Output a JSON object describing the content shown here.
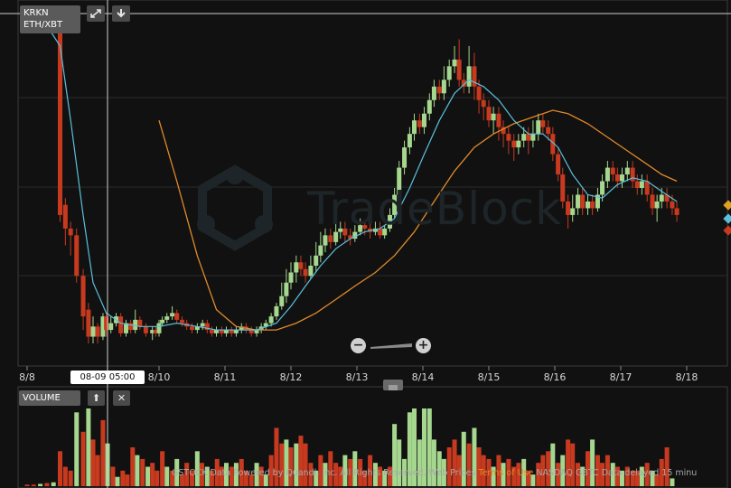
{
  "header": {
    "exchange": "KRKN",
    "pair": "ETH/XBT"
  },
  "volume_panel": {
    "label": "VOLUME",
    "close_symbol": "✕",
    "up_symbol": "⬆"
  },
  "crosshair_label": "08-09 05:00",
  "watermark": "TradeBlock",
  "footer": {
    "text_before": "GSTOCK Data Powered by Quandl, Inc. All Rights Reserved. Web Prices ",
    "terms": "Terms of Use",
    "text_after": " NASDAQ GBTC Data delayed 15 minu"
  },
  "colors": {
    "up": "#a6d78f",
    "down": "#c83a1f",
    "ma_fast": "#5bc0de",
    "ma_slow": "#e08a2a",
    "background": "#111111",
    "grid": "#2a2a2a"
  },
  "icons": {
    "expand": "expand-icon",
    "download": "download-icon",
    "zoom_out": "zoom-out-icon",
    "zoom_in": "zoom-in-icon"
  },
  "chart_data": {
    "type": "candlestick",
    "x_tick_labels": [
      "8/8",
      "8/10",
      "8/11",
      "8/12",
      "8/13",
      "8/14",
      "8/15",
      "8/16",
      "8/17",
      "8/18"
    ],
    "x_ticks": [
      8.0,
      10.0,
      11.0,
      12.0,
      13.0,
      14.0,
      15.0,
      16.0,
      17.0,
      18.0
    ],
    "xlim": [
      8.0,
      18.6
    ],
    "ylim": [
      0,
      100
    ],
    "candles": [
      [
        8.0,
        98,
        98,
        99,
        97
      ],
      [
        8.1,
        98,
        97,
        98,
        96
      ],
      [
        8.2,
        98,
        97,
        99,
        96
      ],
      [
        8.3,
        98,
        97,
        99,
        96
      ],
      [
        8.5,
        98,
        42,
        98,
        40
      ],
      [
        8.58,
        45,
        38,
        47,
        33
      ],
      [
        8.66,
        38,
        36,
        40,
        30
      ],
      [
        8.75,
        36,
        24,
        38,
        22
      ],
      [
        8.85,
        24,
        12,
        26,
        8
      ],
      [
        8.93,
        14,
        6,
        16,
        4
      ],
      [
        9.0,
        6,
        9,
        12,
        4
      ],
      [
        9.07,
        9,
        6,
        10,
        4
      ],
      [
        9.15,
        6,
        12,
        13,
        5
      ],
      [
        9.2,
        12,
        8,
        13,
        6
      ],
      [
        9.27,
        8,
        10,
        12,
        7
      ],
      [
        9.35,
        10,
        12,
        13,
        9
      ],
      [
        9.42,
        12,
        7,
        13,
        6
      ],
      [
        9.5,
        7,
        10,
        11,
        6
      ],
      [
        9.57,
        10,
        8,
        11,
        7
      ],
      [
        9.64,
        8,
        11,
        14,
        7
      ],
      [
        9.71,
        11,
        9,
        12,
        8
      ],
      [
        9.8,
        9,
        7,
        10,
        6
      ],
      [
        9.9,
        7,
        8,
        9,
        5
      ],
      [
        9.95,
        8,
        7,
        9,
        6
      ],
      [
        10.0,
        7,
        10,
        11,
        6
      ],
      [
        10.05,
        10,
        11,
        12,
        9
      ],
      [
        10.12,
        11,
        12,
        13,
        10
      ],
      [
        10.2,
        12,
        13,
        15,
        11
      ],
      [
        10.27,
        13,
        11,
        14,
        10
      ],
      [
        10.35,
        11,
        10,
        12,
        9
      ],
      [
        10.42,
        10,
        9,
        11,
        8
      ],
      [
        10.5,
        9,
        8,
        10,
        7
      ],
      [
        10.58,
        8,
        9,
        10,
        7
      ],
      [
        10.66,
        9,
        10,
        11,
        8
      ],
      [
        10.73,
        10,
        8,
        11,
        7
      ],
      [
        10.8,
        8,
        7,
        9,
        6
      ],
      [
        10.87,
        7,
        8,
        9,
        6
      ],
      [
        10.95,
        8,
        7,
        9,
        6
      ],
      [
        11.02,
        7,
        8,
        9,
        6
      ],
      [
        11.1,
        8,
        7,
        9,
        6
      ],
      [
        11.17,
        7,
        8,
        9,
        6
      ],
      [
        11.25,
        8,
        9,
        10,
        7
      ],
      [
        11.32,
        9,
        8,
        10,
        7
      ],
      [
        11.4,
        8,
        7,
        9,
        6
      ],
      [
        11.48,
        7,
        8,
        9,
        6
      ],
      [
        11.55,
        8,
        9,
        10,
        7
      ],
      [
        11.62,
        9,
        10,
        11,
        8
      ],
      [
        11.7,
        10,
        12,
        13,
        9
      ],
      [
        11.78,
        12,
        15,
        16,
        11
      ],
      [
        11.86,
        15,
        18,
        22,
        14
      ],
      [
        11.93,
        18,
        22,
        26,
        16
      ],
      [
        12.0,
        22,
        25,
        28,
        20
      ],
      [
        12.08,
        25,
        28,
        30,
        22
      ],
      [
        12.15,
        28,
        26,
        30,
        24
      ],
      [
        12.22,
        26,
        24,
        28,
        22
      ],
      [
        12.3,
        24,
        27,
        30,
        23
      ],
      [
        12.38,
        27,
        30,
        34,
        25
      ],
      [
        12.45,
        30,
        33,
        37,
        28
      ],
      [
        12.52,
        33,
        36,
        38,
        31
      ],
      [
        12.6,
        36,
        34,
        38,
        32
      ],
      [
        12.68,
        34,
        37,
        40,
        33
      ],
      [
        12.75,
        37,
        38,
        40,
        35
      ],
      [
        12.82,
        38,
        36,
        40,
        34
      ],
      [
        12.9,
        36,
        35,
        38,
        33
      ],
      [
        12.97,
        35,
        37,
        39,
        34
      ],
      [
        13.05,
        37,
        39,
        41,
        36
      ],
      [
        13.12,
        39,
        38,
        40,
        36
      ],
      [
        13.2,
        38,
        37,
        40,
        35
      ],
      [
        13.28,
        37,
        38,
        40,
        36
      ],
      [
        13.35,
        38,
        36,
        40,
        35
      ],
      [
        13.42,
        36,
        38,
        39,
        35
      ],
      [
        13.5,
        38,
        42,
        44,
        37
      ],
      [
        13.57,
        42,
        48,
        50,
        41
      ],
      [
        13.64,
        48,
        56,
        58,
        46
      ],
      [
        13.72,
        56,
        62,
        64,
        54
      ],
      [
        13.8,
        62,
        66,
        68,
        60
      ],
      [
        13.87,
        66,
        70,
        72,
        64
      ],
      [
        13.95,
        70,
        68,
        72,
        66
      ],
      [
        14.02,
        68,
        72,
        74,
        66
      ],
      [
        14.1,
        72,
        76,
        78,
        70
      ],
      [
        14.17,
        76,
        80,
        82,
        74
      ],
      [
        14.25,
        80,
        78,
        82,
        76
      ],
      [
        14.32,
        78,
        82,
        86,
        76
      ],
      [
        14.4,
        82,
        86,
        88,
        80
      ],
      [
        14.48,
        86,
        88,
        92,
        84
      ],
      [
        14.55,
        88,
        82,
        94,
        80
      ],
      [
        14.62,
        82,
        80,
        84,
        78
      ],
      [
        14.7,
        80,
        86,
        92,
        78
      ],
      [
        14.78,
        86,
        80,
        90,
        76
      ],
      [
        14.85,
        80,
        76,
        82,
        72
      ],
      [
        14.92,
        76,
        74,
        78,
        70
      ],
      [
        15.0,
        74,
        70,
        76,
        68
      ],
      [
        15.07,
        70,
        72,
        74,
        66
      ],
      [
        15.15,
        72,
        68,
        74,
        64
      ],
      [
        15.22,
        68,
        66,
        70,
        62
      ],
      [
        15.3,
        66,
        64,
        68,
        60
      ],
      [
        15.38,
        64,
        62,
        66,
        58
      ],
      [
        15.45,
        62,
        64,
        66,
        60
      ],
      [
        15.53,
        64,
        66,
        68,
        62
      ],
      [
        15.6,
        66,
        64,
        68,
        60
      ],
      [
        15.67,
        64,
        66,
        70,
        62
      ],
      [
        15.75,
        66,
        70,
        72,
        64
      ],
      [
        15.82,
        70,
        68,
        72,
        66
      ],
      [
        15.9,
        68,
        66,
        70,
        64
      ],
      [
        15.97,
        66,
        60,
        68,
        58
      ],
      [
        16.05,
        60,
        54,
        62,
        52
      ],
      [
        16.12,
        54,
        46,
        56,
        44
      ],
      [
        16.2,
        46,
        42,
        48,
        38
      ],
      [
        16.27,
        42,
        44,
        48,
        40
      ],
      [
        16.35,
        44,
        48,
        50,
        42
      ],
      [
        16.42,
        48,
        44,
        50,
        42
      ],
      [
        16.5,
        44,
        46,
        48,
        42
      ],
      [
        16.57,
        46,
        44,
        48,
        42
      ],
      [
        16.65,
        44,
        48,
        50,
        43
      ],
      [
        16.72,
        48,
        52,
        54,
        46
      ],
      [
        16.8,
        52,
        56,
        58,
        50
      ],
      [
        16.88,
        56,
        54,
        58,
        52
      ],
      [
        16.95,
        54,
        52,
        56,
        50
      ],
      [
        17.02,
        52,
        54,
        56,
        50
      ],
      [
        17.1,
        54,
        56,
        58,
        52
      ],
      [
        17.18,
        56,
        52,
        58,
        50
      ],
      [
        17.25,
        52,
        50,
        54,
        48
      ],
      [
        17.32,
        50,
        52,
        54,
        48
      ],
      [
        17.4,
        52,
        48,
        54,
        46
      ],
      [
        17.48,
        48,
        44,
        50,
        42
      ],
      [
        17.55,
        44,
        46,
        48,
        40
      ],
      [
        17.62,
        46,
        48,
        50,
        44
      ],
      [
        17.7,
        48,
        46,
        50,
        44
      ],
      [
        17.78,
        46,
        44,
        48,
        42
      ],
      [
        17.85,
        44,
        42,
        46,
        40
      ]
    ],
    "ma_fast": [
      [
        8.3,
        98
      ],
      [
        8.5,
        92
      ],
      [
        8.66,
        70
      ],
      [
        8.85,
        42
      ],
      [
        9.0,
        22
      ],
      [
        9.2,
        13
      ],
      [
        9.42,
        10
      ],
      [
        9.71,
        9
      ],
      [
        10.0,
        9
      ],
      [
        10.27,
        10
      ],
      [
        10.58,
        9
      ],
      [
        10.87,
        8
      ],
      [
        11.17,
        8
      ],
      [
        11.48,
        8
      ],
      [
        11.78,
        10
      ],
      [
        12.0,
        15
      ],
      [
        12.22,
        21
      ],
      [
        12.45,
        27
      ],
      [
        12.68,
        32
      ],
      [
        12.9,
        35
      ],
      [
        13.12,
        37
      ],
      [
        13.35,
        38
      ],
      [
        13.57,
        41
      ],
      [
        13.8,
        50
      ],
      [
        14.02,
        60
      ],
      [
        14.25,
        70
      ],
      [
        14.48,
        78
      ],
      [
        14.7,
        82
      ],
      [
        14.92,
        80
      ],
      [
        15.15,
        76
      ],
      [
        15.38,
        70
      ],
      [
        15.6,
        66
      ],
      [
        15.82,
        66
      ],
      [
        16.05,
        62
      ],
      [
        16.27,
        54
      ],
      [
        16.5,
        48
      ],
      [
        16.72,
        47
      ],
      [
        16.95,
        51
      ],
      [
        17.18,
        53
      ],
      [
        17.4,
        52
      ],
      [
        17.62,
        49
      ],
      [
        17.85,
        46
      ]
    ],
    "ma_slow": [
      [
        10.0,
        70
      ],
      [
        10.27,
        52
      ],
      [
        10.58,
        30
      ],
      [
        10.87,
        14
      ],
      [
        11.17,
        9
      ],
      [
        11.48,
        8
      ],
      [
        11.78,
        8
      ],
      [
        12.08,
        10
      ],
      [
        12.38,
        13
      ],
      [
        12.68,
        17
      ],
      [
        12.97,
        21
      ],
      [
        13.28,
        25
      ],
      [
        13.57,
        30
      ],
      [
        13.87,
        37
      ],
      [
        14.17,
        46
      ],
      [
        14.48,
        55
      ],
      [
        14.78,
        62
      ],
      [
        15.07,
        66
      ],
      [
        15.38,
        69
      ],
      [
        15.67,
        71
      ],
      [
        15.97,
        73
      ],
      [
        16.2,
        72
      ],
      [
        16.5,
        69
      ],
      [
        16.8,
        65
      ],
      [
        17.1,
        61
      ],
      [
        17.4,
        57
      ],
      [
        17.62,
        54
      ],
      [
        17.85,
        52
      ]
    ],
    "volume": [
      [
        8.0,
        2
      ],
      [
        8.1,
        2
      ],
      [
        8.2,
        3
      ],
      [
        8.3,
        4
      ],
      [
        8.4,
        5
      ],
      [
        8.5,
        45
      ],
      [
        8.58,
        25
      ],
      [
        8.66,
        20
      ],
      [
        8.75,
        95
      ],
      [
        8.85,
        70
      ],
      [
        8.93,
        100
      ],
      [
        9.0,
        60
      ],
      [
        9.07,
        40
      ],
      [
        9.15,
        85
      ],
      [
        9.22,
        55
      ],
      [
        9.3,
        25
      ],
      [
        9.37,
        12
      ],
      [
        9.45,
        20
      ],
      [
        9.52,
        15
      ],
      [
        9.6,
        50
      ],
      [
        9.67,
        40
      ],
      [
        9.75,
        35
      ],
      [
        9.83,
        25
      ],
      [
        9.9,
        30
      ],
      [
        9.97,
        20
      ],
      [
        10.05,
        45
      ],
      [
        10.12,
        25
      ],
      [
        10.2,
        20
      ],
      [
        10.27,
        35
      ],
      [
        10.35,
        15
      ],
      [
        10.42,
        30
      ],
      [
        10.5,
        20
      ],
      [
        10.58,
        45
      ],
      [
        10.65,
        30
      ],
      [
        10.73,
        25
      ],
      [
        10.8,
        20
      ],
      [
        10.88,
        35
      ],
      [
        10.95,
        25
      ],
      [
        11.02,
        30
      ],
      [
        11.1,
        25
      ],
      [
        11.17,
        30
      ],
      [
        11.25,
        35
      ],
      [
        11.32,
        20
      ],
      [
        11.4,
        15
      ],
      [
        11.48,
        30
      ],
      [
        11.55,
        25
      ],
      [
        11.62,
        15
      ],
      [
        11.7,
        40
      ],
      [
        11.78,
        75
      ],
      [
        11.86,
        55
      ],
      [
        11.93,
        60
      ],
      [
        12.0,
        50
      ],
      [
        12.08,
        55
      ],
      [
        12.15,
        65
      ],
      [
        12.22,
        55
      ],
      [
        12.3,
        30
      ],
      [
        12.38,
        20
      ],
      [
        12.45,
        40
      ],
      [
        12.52,
        30
      ],
      [
        12.6,
        45
      ],
      [
        12.68,
        30
      ],
      [
        12.75,
        25
      ],
      [
        12.82,
        40
      ],
      [
        12.9,
        35
      ],
      [
        12.97,
        45
      ],
      [
        13.05,
        35
      ],
      [
        13.12,
        20
      ],
      [
        13.2,
        40
      ],
      [
        13.28,
        30
      ],
      [
        13.35,
        25
      ],
      [
        13.42,
        20
      ],
      [
        13.5,
        25
      ],
      [
        13.57,
        80
      ],
      [
        13.64,
        60
      ],
      [
        13.72,
        35
      ],
      [
        13.8,
        95
      ],
      [
        13.87,
        100
      ],
      [
        13.95,
        60
      ],
      [
        14.02,
        100
      ],
      [
        14.1,
        100
      ],
      [
        14.17,
        60
      ],
      [
        14.25,
        45
      ],
      [
        14.32,
        35
      ],
      [
        14.4,
        50
      ],
      [
        14.48,
        60
      ],
      [
        14.55,
        40
      ],
      [
        14.62,
        70
      ],
      [
        14.7,
        55
      ],
      [
        14.78,
        75
      ],
      [
        14.85,
        50
      ],
      [
        14.92,
        40
      ],
      [
        15.0,
        35
      ],
      [
        15.07,
        25
      ],
      [
        15.15,
        40
      ],
      [
        15.22,
        30
      ],
      [
        15.3,
        35
      ],
      [
        15.38,
        25
      ],
      [
        15.45,
        30
      ],
      [
        15.53,
        35
      ],
      [
        15.6,
        20
      ],
      [
        15.67,
        15
      ],
      [
        15.75,
        30
      ],
      [
        15.82,
        40
      ],
      [
        15.9,
        45
      ],
      [
        15.97,
        55
      ],
      [
        16.05,
        30
      ],
      [
        16.12,
        40
      ],
      [
        16.2,
        60
      ],
      [
        16.27,
        55
      ],
      [
        16.35,
        30
      ],
      [
        16.42,
        25
      ],
      [
        16.5,
        45
      ],
      [
        16.57,
        60
      ],
      [
        16.65,
        40
      ],
      [
        16.72,
        30
      ],
      [
        16.8,
        40
      ],
      [
        16.88,
        30
      ],
      [
        16.95,
        25
      ],
      [
        17.02,
        20
      ],
      [
        17.1,
        25
      ],
      [
        17.18,
        20
      ],
      [
        17.25,
        20
      ],
      [
        17.32,
        25
      ],
      [
        17.4,
        30
      ],
      [
        17.48,
        20
      ],
      [
        17.55,
        15
      ],
      [
        17.62,
        35
      ],
      [
        17.7,
        50
      ],
      [
        17.78,
        10
      ]
    ]
  }
}
